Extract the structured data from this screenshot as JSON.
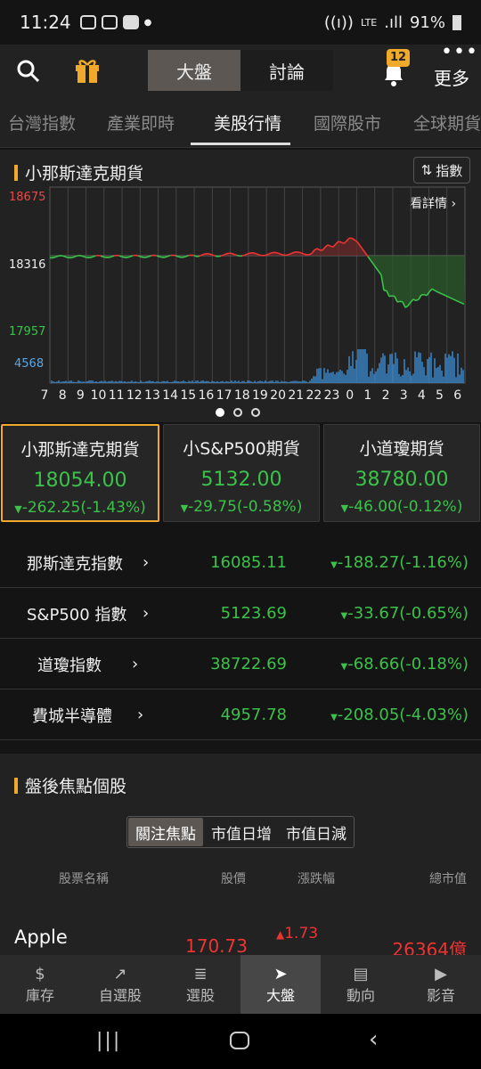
{
  "status": {
    "time": "11:24",
    "battery": "91%"
  },
  "appbar": {
    "seg": [
      "大盤",
      "討論"
    ],
    "badge": "12",
    "more": "更多"
  },
  "tabs": [
    "台灣指數",
    "產業即時",
    "美股行情",
    "國際股市",
    "全球期貨"
  ],
  "chart_title": "小那斯達克期貨",
  "chart_switch": "指數",
  "chart_detail": "看詳情",
  "chart_data": {
    "type": "line",
    "ylabels": [
      "18675",
      "18316",
      "17957"
    ],
    "volume_label": "4568",
    "x": [
      "7",
      "8",
      "9",
      "10",
      "11",
      "12",
      "13",
      "14",
      "15",
      "16",
      "17",
      "18",
      "19",
      "20",
      "21",
      "22",
      "23",
      "0",
      "1",
      "2",
      "3",
      "4",
      "5",
      "6"
    ],
    "reference": 18316,
    "ylim": [
      17957,
      18675
    ]
  },
  "cards": [
    {
      "name": "小那斯達克期貨",
      "value": "18054.00",
      "change": "-262.25(-1.43%)"
    },
    {
      "name": "小S&P500期貨",
      "value": "5132.00",
      "change": "-29.75(-0.58%)"
    },
    {
      "name": "小道瓊期貨",
      "value": "38780.00",
      "change": "-46.00(-0.12%)"
    }
  ],
  "indices": [
    {
      "name": "那斯達克指數",
      "value": "16085.11",
      "change": "-188.27(-1.16%)"
    },
    {
      "name": "S&P500 指數",
      "value": "5123.69",
      "change": "-33.67(-0.65%)"
    },
    {
      "name": "道瓊指數",
      "value": "38722.69",
      "change": "-68.66(-0.18%)"
    },
    {
      "name": "費城半導體",
      "value": "4957.78",
      "change": "-208.05(-4.03%)"
    }
  ],
  "after_title": "盤後焦點個股",
  "after_tabs": [
    "關注焦點",
    "市值日增",
    "市值日減"
  ],
  "cols": [
    "股票名稱",
    "股價",
    "漲跌幅",
    "總市值"
  ],
  "stock": {
    "name": "Apple",
    "price": "170.73",
    "change": "1.73",
    "cap": "26364億"
  },
  "nav": [
    "庫存",
    "自選股",
    "選股",
    "大盤",
    "動向",
    "影音"
  ]
}
